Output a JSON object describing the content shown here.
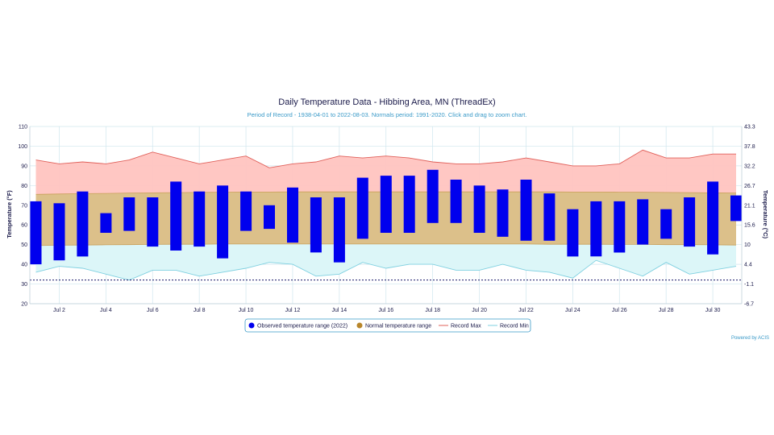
{
  "chart_data": {
    "type": "bar",
    "title": "Daily Temperature Data - Hibbing Area, MN (ThreadEx)",
    "subtitle": "Period of Record - 1938-04-01 to 2022-08-03. Normals period: 1991-2020. Click and drag to zoom chart.",
    "ylabel": "Temperature (°F)",
    "ylabel_right": "Temperature (°C)",
    "ylim": [
      20,
      110
    ],
    "y_ticks": [
      20,
      30,
      40,
      50,
      60,
      70,
      80,
      90,
      100,
      110
    ],
    "y_ticks_right": [
      "-6.7",
      "-1.1",
      "4.4",
      "10",
      "15.6",
      "21.1",
      "26.7",
      "32.2",
      "37.8",
      "43.3"
    ],
    "x_days": [
      1,
      2,
      3,
      4,
      5,
      6,
      7,
      8,
      9,
      10,
      11,
      12,
      13,
      14,
      15,
      16,
      17,
      18,
      19,
      20,
      21,
      22,
      23,
      24,
      25,
      26,
      27,
      28,
      29,
      30,
      31
    ],
    "x_tick_labels": [
      "Jul 2",
      "Jul 4",
      "Jul 6",
      "Jul 8",
      "Jul 10",
      "Jul 12",
      "Jul 14",
      "Jul 16",
      "Jul 18",
      "Jul 20",
      "Jul 22",
      "Jul 24",
      "Jul 26",
      "Jul 28",
      "Jul 30"
    ],
    "x_tick_days": [
      2,
      4,
      6,
      8,
      10,
      12,
      14,
      16,
      18,
      20,
      22,
      24,
      26,
      28,
      30
    ],
    "series": [
      {
        "name": "Observed temperature range (2022)",
        "color": "#0000ee",
        "lows": [
          40,
          42,
          44,
          56,
          57,
          49,
          47,
          49,
          43,
          57,
          58,
          51,
          46,
          41,
          53,
          56,
          56,
          61,
          61,
          56,
          54,
          52,
          52,
          44,
          44,
          46,
          50,
          53,
          49,
          45,
          62
        ],
        "highs": [
          72,
          71,
          77,
          66,
          74,
          74,
          82,
          77,
          80,
          77,
          70,
          79,
          74,
          74,
          84,
          85,
          85,
          88,
          83,
          80,
          78,
          83,
          76,
          68,
          72,
          72,
          73,
          68,
          74,
          82,
          75
        ]
      },
      {
        "name": "Normal temperature range",
        "color": "#b8862b",
        "lows": [
          49.5,
          49.7,
          49.8,
          49.9,
          50,
          50.1,
          50.2,
          50.2,
          50.3,
          50.3,
          50.3,
          50.3,
          50.3,
          50.3,
          50.3,
          50.3,
          50.3,
          50.3,
          50.3,
          50.3,
          50.3,
          50.3,
          50.2,
          50.2,
          50.2,
          50.1,
          50.1,
          50,
          50,
          49.9,
          49.8
        ],
        "highs": [
          75.5,
          75.7,
          75.9,
          76,
          76.2,
          76.3,
          76.4,
          76.5,
          76.6,
          76.7,
          76.7,
          76.8,
          76.8,
          76.8,
          76.8,
          76.8,
          76.8,
          76.8,
          76.8,
          76.8,
          76.8,
          76.8,
          76.8,
          76.7,
          76.7,
          76.6,
          76.6,
          76.5,
          76.4,
          76.3,
          76.2
        ]
      },
      {
        "name": "Record Max",
        "color": "#e0605a",
        "values": [
          93,
          91,
          92,
          91,
          93,
          97,
          94,
          91,
          93,
          95,
          89,
          91,
          92,
          95,
          94,
          95,
          94,
          92,
          91,
          91,
          92,
          94,
          92,
          90,
          90,
          91,
          98,
          94,
          94,
          96,
          96
        ]
      },
      {
        "name": "Record Min",
        "color": "#7fd0e0",
        "values": [
          36,
          39,
          38,
          35,
          32,
          37,
          37,
          34,
          36,
          38,
          41,
          40,
          34,
          35,
          41,
          38,
          40,
          40,
          37,
          37,
          40,
          37,
          36,
          33,
          42,
          38,
          34,
          41,
          35,
          37,
          39
        ]
      }
    ],
    "dashed_line_value": 32,
    "legend_position": "bottom-center",
    "grid": true,
    "credit": "Powered by ACIS"
  }
}
